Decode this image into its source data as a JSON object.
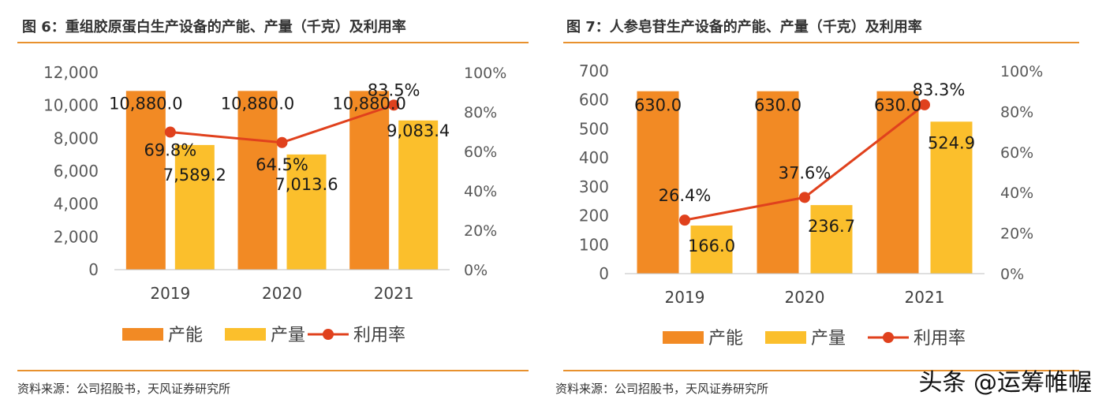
{
  "left": {
    "title": "图 6：重组胶原蛋白生产设备的产能、产量（千克）及利用率",
    "source": "资料来源：公司招股书，天风证券研究所"
  },
  "right": {
    "title": "图 7：人参皂苷生产设备的产能、产量（千克）及利用率",
    "source": "资料来源：公司招股书，天风证券研究所"
  },
  "watermark": "头条 @运筹帷幄",
  "colors": {
    "capacity": "#f28a24",
    "output": "#fbbf2c",
    "rate": "#e0411d",
    "accent": "#e8912e"
  },
  "chart_data": [
    {
      "type": "bar",
      "categories": [
        "2019",
        "2020",
        "2021"
      ],
      "series": [
        {
          "name": "产能",
          "kind": "bar",
          "values": [
            10880.0,
            10880.0,
            10880.0
          ],
          "labels": [
            "10,880.0",
            "10,880.0",
            "10,880.0"
          ]
        },
        {
          "name": "产量",
          "kind": "bar",
          "values": [
            7589.2,
            7013.6,
            9083.4
          ],
          "labels": [
            "7,589.2",
            "7,013.6",
            "9,083.4"
          ]
        },
        {
          "name": "利用率",
          "kind": "line",
          "axis": "right",
          "values": [
            69.8,
            64.5,
            83.5
          ],
          "labels": [
            "69.8%",
            "64.5%",
            "83.5%"
          ]
        }
      ],
      "ylim": [
        0,
        12000
      ],
      "y_ticks": [
        "0",
        "2,000",
        "4,000",
        "6,000",
        "8,000",
        "10,000",
        "12,000"
      ],
      "y2lim": [
        0,
        100
      ],
      "y2_ticks": [
        "0%",
        "20%",
        "40%",
        "60%",
        "80%",
        "100%"
      ],
      "legend_position": "bottom",
      "grid": false
    },
    {
      "type": "bar",
      "categories": [
        "2019",
        "2020",
        "2021"
      ],
      "series": [
        {
          "name": "产能",
          "kind": "bar",
          "values": [
            630.0,
            630.0,
            630.0
          ],
          "labels": [
            "630.0",
            "630.0",
            "630.0"
          ]
        },
        {
          "name": "产量",
          "kind": "bar",
          "values": [
            166.0,
            236.7,
            524.9
          ],
          "labels": [
            "166.0",
            "236.7",
            "524.9"
          ]
        },
        {
          "name": "利用率",
          "kind": "line",
          "axis": "right",
          "values": [
            26.4,
            37.6,
            83.3
          ],
          "labels": [
            "26.4%",
            "37.6%",
            "83.3%"
          ]
        }
      ],
      "ylim": [
        0,
        700
      ],
      "y_ticks": [
        "0",
        "100",
        "200",
        "300",
        "400",
        "500",
        "600",
        "700"
      ],
      "y2lim": [
        0,
        100
      ],
      "y2_ticks": [
        "0%",
        "20%",
        "40%",
        "60%",
        "80%",
        "100%"
      ],
      "legend_position": "bottom",
      "grid": false
    }
  ]
}
